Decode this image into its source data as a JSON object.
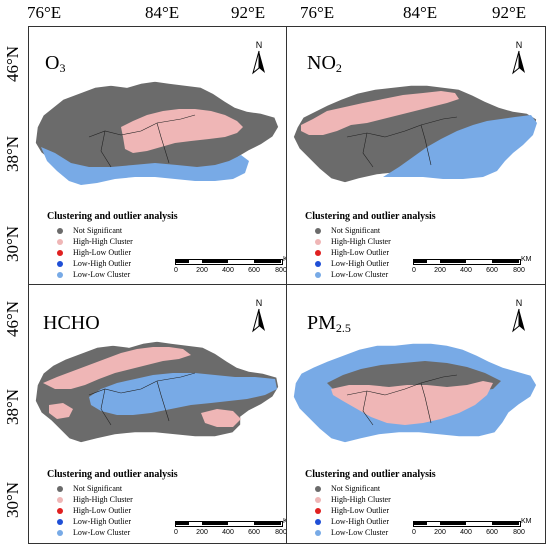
{
  "axes": {
    "longitudes": [
      "76°E",
      "84°E",
      "92°E",
      "76°E",
      "84°E",
      "92°E"
    ],
    "latitudes": [
      "46°N",
      "38°N",
      "30°N",
      "46°N",
      "38°N",
      "30°N"
    ]
  },
  "legend": {
    "title": "Clustering and outlier analysis",
    "items": [
      {
        "label": "Not Significant",
        "color": "#6b6b6b"
      },
      {
        "label": "High-High Cluster",
        "color": "#efb6b6"
      },
      {
        "label": "High-Low Outlier",
        "color": "#e02020"
      },
      {
        "label": "Low-High Outlier",
        "color": "#1f4fd6"
      },
      {
        "label": "Low-Low Cluster",
        "color": "#78aae6"
      }
    ]
  },
  "north_label": "N",
  "scale": {
    "unit": "KM",
    "ticks": [
      "0",
      "200",
      "400",
      "600",
      "800"
    ]
  },
  "panels": [
    {
      "key": "o3",
      "title": "O",
      "title_sub": "3"
    },
    {
      "key": "no2",
      "title": "NO",
      "title_sub": "2"
    },
    {
      "key": "hcho",
      "title": "HCHO",
      "title_sub": ""
    },
    {
      "key": "pm25",
      "title": "PM",
      "title_sub": "2.5"
    }
  ],
  "colors": {
    "not_significant": "#6b6b6b",
    "high_high": "#efb6b6",
    "low_low": "#78aae6",
    "boundary": "#222222"
  }
}
